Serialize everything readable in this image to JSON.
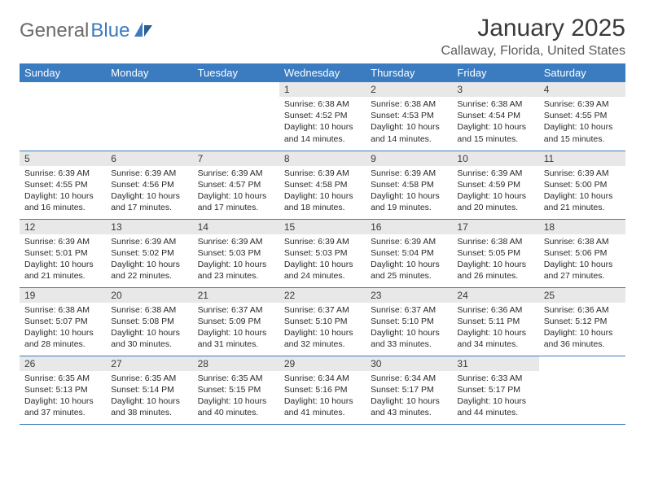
{
  "logo": {
    "part1": "General",
    "part2": "Blue"
  },
  "title": "January 2025",
  "location": "Callaway, Florida, United States",
  "colors": {
    "accent": "#3b7bbf",
    "dayNumBg": "#e8e8e8",
    "text": "#2a2a2a",
    "border": "#3b7bbf"
  },
  "weekdays": [
    "Sunday",
    "Monday",
    "Tuesday",
    "Wednesday",
    "Thursday",
    "Friday",
    "Saturday"
  ],
  "startWeekday": 3,
  "daysInMonth": 31,
  "days": {
    "1": {
      "sunrise": "6:38 AM",
      "sunset": "4:52 PM",
      "daylight": "10 hours and 14 minutes."
    },
    "2": {
      "sunrise": "6:38 AM",
      "sunset": "4:53 PM",
      "daylight": "10 hours and 14 minutes."
    },
    "3": {
      "sunrise": "6:38 AM",
      "sunset": "4:54 PM",
      "daylight": "10 hours and 15 minutes."
    },
    "4": {
      "sunrise": "6:39 AM",
      "sunset": "4:55 PM",
      "daylight": "10 hours and 15 minutes."
    },
    "5": {
      "sunrise": "6:39 AM",
      "sunset": "4:55 PM",
      "daylight": "10 hours and 16 minutes."
    },
    "6": {
      "sunrise": "6:39 AM",
      "sunset": "4:56 PM",
      "daylight": "10 hours and 17 minutes."
    },
    "7": {
      "sunrise": "6:39 AM",
      "sunset": "4:57 PM",
      "daylight": "10 hours and 17 minutes."
    },
    "8": {
      "sunrise": "6:39 AM",
      "sunset": "4:58 PM",
      "daylight": "10 hours and 18 minutes."
    },
    "9": {
      "sunrise": "6:39 AM",
      "sunset": "4:58 PM",
      "daylight": "10 hours and 19 minutes."
    },
    "10": {
      "sunrise": "6:39 AM",
      "sunset": "4:59 PM",
      "daylight": "10 hours and 20 minutes."
    },
    "11": {
      "sunrise": "6:39 AM",
      "sunset": "5:00 PM",
      "daylight": "10 hours and 21 minutes."
    },
    "12": {
      "sunrise": "6:39 AM",
      "sunset": "5:01 PM",
      "daylight": "10 hours and 21 minutes."
    },
    "13": {
      "sunrise": "6:39 AM",
      "sunset": "5:02 PM",
      "daylight": "10 hours and 22 minutes."
    },
    "14": {
      "sunrise": "6:39 AM",
      "sunset": "5:03 PM",
      "daylight": "10 hours and 23 minutes."
    },
    "15": {
      "sunrise": "6:39 AM",
      "sunset": "5:03 PM",
      "daylight": "10 hours and 24 minutes."
    },
    "16": {
      "sunrise": "6:39 AM",
      "sunset": "5:04 PM",
      "daylight": "10 hours and 25 minutes."
    },
    "17": {
      "sunrise": "6:38 AM",
      "sunset": "5:05 PM",
      "daylight": "10 hours and 26 minutes."
    },
    "18": {
      "sunrise": "6:38 AM",
      "sunset": "5:06 PM",
      "daylight": "10 hours and 27 minutes."
    },
    "19": {
      "sunrise": "6:38 AM",
      "sunset": "5:07 PM",
      "daylight": "10 hours and 28 minutes."
    },
    "20": {
      "sunrise": "6:38 AM",
      "sunset": "5:08 PM",
      "daylight": "10 hours and 30 minutes."
    },
    "21": {
      "sunrise": "6:37 AM",
      "sunset": "5:09 PM",
      "daylight": "10 hours and 31 minutes."
    },
    "22": {
      "sunrise": "6:37 AM",
      "sunset": "5:10 PM",
      "daylight": "10 hours and 32 minutes."
    },
    "23": {
      "sunrise": "6:37 AM",
      "sunset": "5:10 PM",
      "daylight": "10 hours and 33 minutes."
    },
    "24": {
      "sunrise": "6:36 AM",
      "sunset": "5:11 PM",
      "daylight": "10 hours and 34 minutes."
    },
    "25": {
      "sunrise": "6:36 AM",
      "sunset": "5:12 PM",
      "daylight": "10 hours and 36 minutes."
    },
    "26": {
      "sunrise": "6:35 AM",
      "sunset": "5:13 PM",
      "daylight": "10 hours and 37 minutes."
    },
    "27": {
      "sunrise": "6:35 AM",
      "sunset": "5:14 PM",
      "daylight": "10 hours and 38 minutes."
    },
    "28": {
      "sunrise": "6:35 AM",
      "sunset": "5:15 PM",
      "daylight": "10 hours and 40 minutes."
    },
    "29": {
      "sunrise": "6:34 AM",
      "sunset": "5:16 PM",
      "daylight": "10 hours and 41 minutes."
    },
    "30": {
      "sunrise": "6:34 AM",
      "sunset": "5:17 PM",
      "daylight": "10 hours and 43 minutes."
    },
    "31": {
      "sunrise": "6:33 AM",
      "sunset": "5:17 PM",
      "daylight": "10 hours and 44 minutes."
    }
  },
  "labels": {
    "sunrise": "Sunrise:",
    "sunset": "Sunset:",
    "daylight": "Daylight:"
  }
}
